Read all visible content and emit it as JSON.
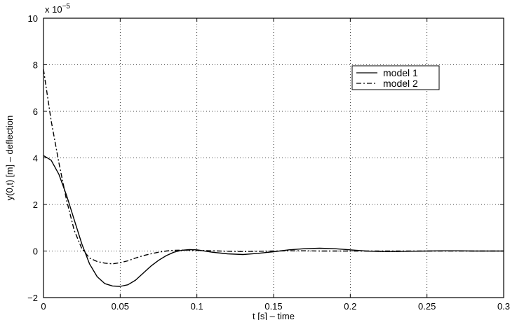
{
  "chart_data": {
    "type": "line",
    "xlabel": "t [s] – time",
    "ylabel": "y(0,t) [m] – deflection",
    "exponent_label": "x 10",
    "exponent_power": "−5",
    "xlim": [
      0,
      0.3
    ],
    "ylim": [
      -2,
      10
    ],
    "x_ticks": [
      0,
      0.05,
      0.1,
      0.15,
      0.2,
      0.25,
      0.3
    ],
    "x_tick_labels": [
      "0",
      "0.05",
      "0.1",
      "0.15",
      "0.2",
      "0.25",
      "0.3"
    ],
    "y_ticks": [
      -2,
      0,
      2,
      4,
      6,
      8,
      10
    ],
    "y_tick_labels": [
      "−2",
      "0",
      "2",
      "4",
      "6",
      "8",
      "10"
    ],
    "grid": true,
    "legend_position": "top-right",
    "series": [
      {
        "name": "model 1",
        "style": "solid",
        "x": [
          0,
          0.005,
          0.01,
          0.015,
          0.02,
          0.025,
          0.03,
          0.035,
          0.04,
          0.045,
          0.05,
          0.055,
          0.06,
          0.065,
          0.07,
          0.075,
          0.08,
          0.085,
          0.09,
          0.095,
          0.1,
          0.11,
          0.12,
          0.13,
          0.14,
          0.15,
          0.16,
          0.17,
          0.18,
          0.19,
          0.2,
          0.21,
          0.22,
          0.23,
          0.24,
          0.25,
          0.26,
          0.27,
          0.28,
          0.29,
          0.3
        ],
        "y": [
          4.1,
          3.9,
          3.3,
          2.4,
          1.35,
          0.3,
          -0.55,
          -1.1,
          -1.4,
          -1.5,
          -1.52,
          -1.45,
          -1.25,
          -0.95,
          -0.65,
          -0.4,
          -0.2,
          -0.05,
          0.03,
          0.06,
          0.05,
          -0.05,
          -0.12,
          -0.15,
          -0.1,
          -0.03,
          0.05,
          0.1,
          0.12,
          0.1,
          0.05,
          0.0,
          -0.02,
          -0.02,
          -0.01,
          0.0,
          0.01,
          0.01,
          0.0,
          0.0,
          0.0
        ]
      },
      {
        "name": "model 2",
        "style": "dash-dot",
        "x": [
          0,
          0.005,
          0.01,
          0.015,
          0.02,
          0.025,
          0.03,
          0.035,
          0.04,
          0.045,
          0.05,
          0.055,
          0.06,
          0.065,
          0.07,
          0.075,
          0.08,
          0.085,
          0.09,
          0.095,
          0.1,
          0.11,
          0.12,
          0.13,
          0.14,
          0.15,
          0.16,
          0.17,
          0.18,
          0.19,
          0.2,
          0.21,
          0.22,
          0.23,
          0.24,
          0.25,
          0.26,
          0.27,
          0.28,
          0.29,
          0.3
        ],
        "y": [
          7.8,
          5.6,
          3.8,
          2.2,
          0.9,
          0.1,
          -0.3,
          -0.45,
          -0.52,
          -0.55,
          -0.5,
          -0.42,
          -0.3,
          -0.2,
          -0.12,
          -0.05,
          0.0,
          0.03,
          0.04,
          0.04,
          0.03,
          0.01,
          -0.01,
          -0.02,
          -0.01,
          0.0,
          0.01,
          0.01,
          0.0,
          0.0,
          0.0,
          0.0,
          0.0,
          0.0,
          0.0,
          0.0,
          0.0,
          0.0,
          0.0,
          0.0,
          0.0
        ]
      }
    ]
  }
}
